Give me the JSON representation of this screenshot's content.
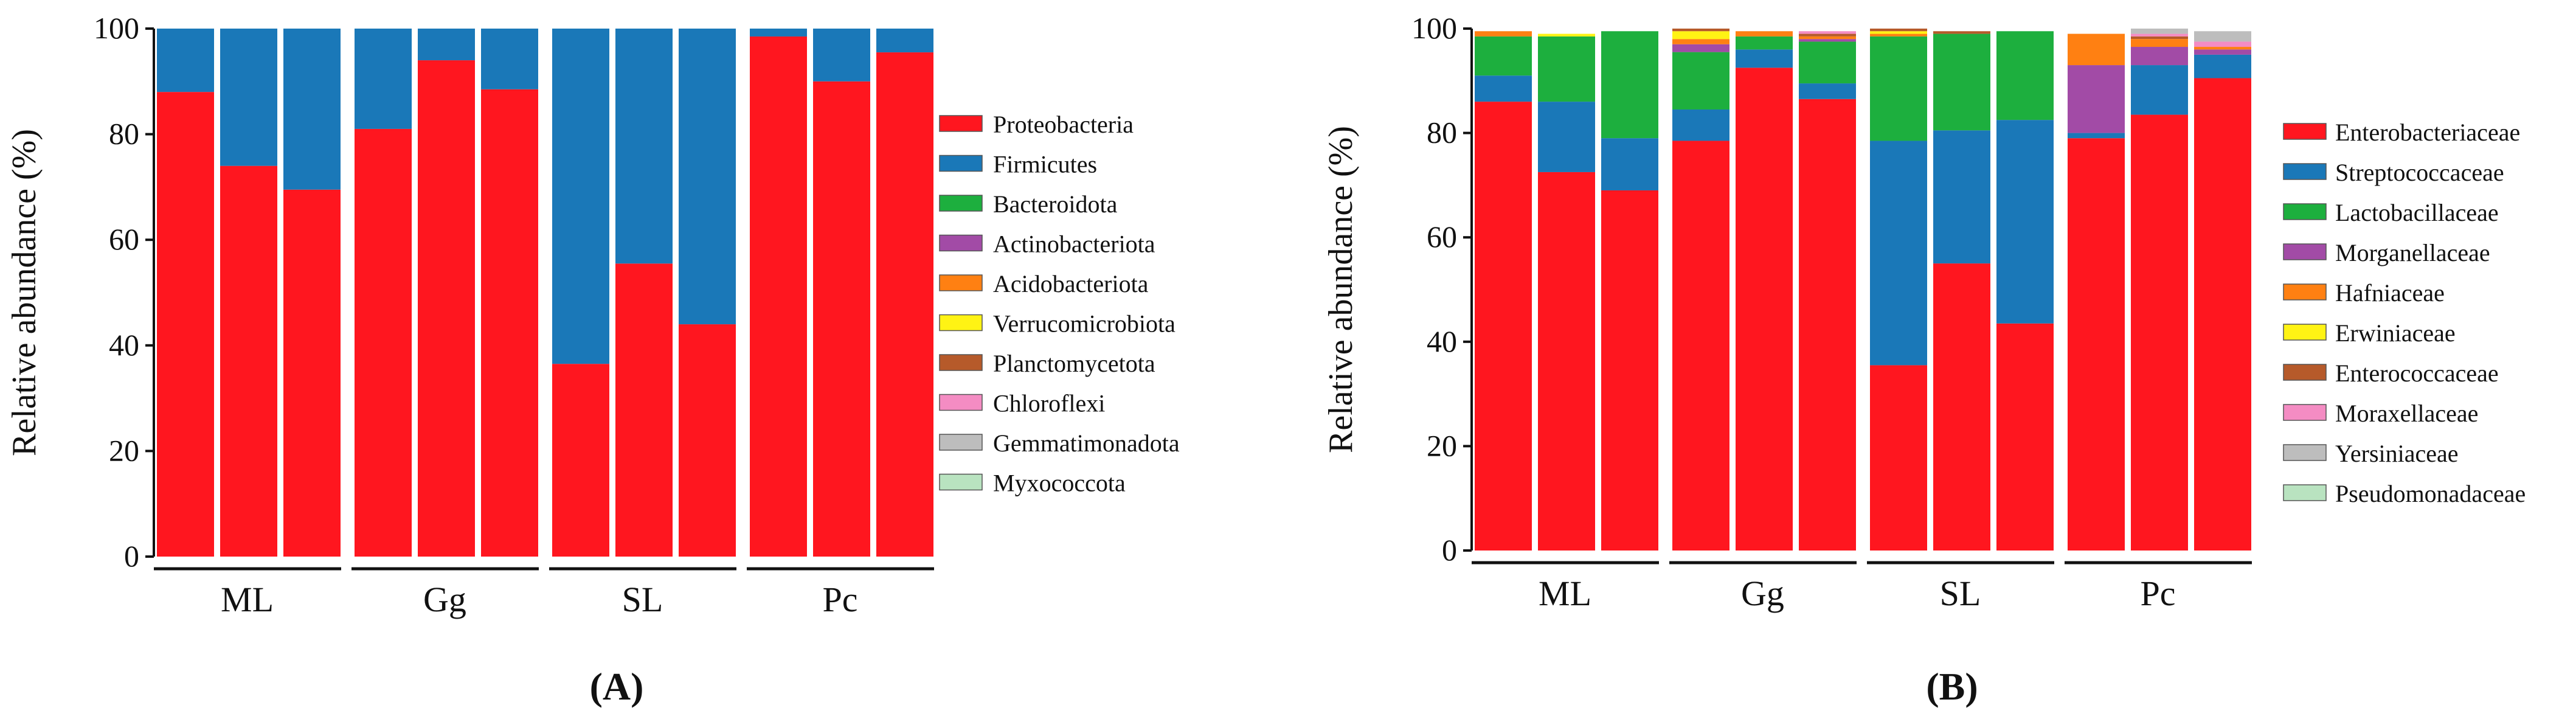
{
  "chart_data": [
    {
      "panel": "A",
      "panel_label": "(A)",
      "type": "bar",
      "stacked": true,
      "ylabel": "Relative abundance (%)",
      "ylim": [
        0,
        100
      ],
      "yticks": [
        0,
        20,
        40,
        60,
        80,
        100
      ],
      "groups": [
        {
          "label": "ML",
          "n": 3
        },
        {
          "label": "Gg",
          "n": 3
        },
        {
          "label": "SL",
          "n": 3
        },
        {
          "label": "Pc",
          "n": 3
        }
      ],
      "series": [
        {
          "name": "Proteobacteria",
          "color": "#FF161F",
          "values": [
            88,
            74,
            69.5,
            81,
            94,
            88.5,
            36.5,
            55.5,
            44,
            98.5,
            90,
            95.5
          ]
        },
        {
          "name": "Firmicutes",
          "color": "#1A78B8",
          "values": [
            12,
            26,
            30.5,
            19,
            6,
            11.5,
            63.5,
            44.5,
            56,
            1.5,
            10,
            4.5
          ]
        },
        {
          "name": "Bacteroidota",
          "color": "#1DAF3E",
          "values": [
            0,
            0,
            0,
            0,
            0,
            0,
            0,
            0,
            0,
            0,
            0,
            0
          ]
        },
        {
          "name": "Actinobacteriota",
          "color": "#A24BA6",
          "values": [
            0,
            0,
            0,
            0,
            0,
            0,
            0,
            0,
            0,
            0,
            0,
            0
          ]
        },
        {
          "name": "Acidobacteriota",
          "color": "#FF8012",
          "values": [
            0,
            0,
            0,
            0,
            0,
            0,
            0,
            0,
            0,
            0,
            0,
            0
          ]
        },
        {
          "name": "Verrucomicrobiota",
          "color": "#FFF314",
          "values": [
            0,
            0,
            0,
            0,
            0,
            0,
            0,
            0,
            0,
            0,
            0,
            0
          ]
        },
        {
          "name": "Planctomycetota",
          "color": "#B65A2A",
          "values": [
            0,
            0,
            0,
            0,
            0,
            0,
            0,
            0,
            0,
            0,
            0,
            0
          ]
        },
        {
          "name": "Chloroflexi",
          "color": "#F48CC3",
          "values": [
            0,
            0,
            0,
            0,
            0,
            0,
            0,
            0,
            0,
            0,
            0,
            0
          ]
        },
        {
          "name": "Gemmatimonadota",
          "color": "#BDBDBD",
          "values": [
            0,
            0,
            0,
            0,
            0,
            0,
            0,
            0,
            0,
            0,
            0,
            0
          ]
        },
        {
          "name": "Myxococcota",
          "color": "#B9E3C0",
          "values": [
            0,
            0,
            0,
            0,
            0,
            0,
            0,
            0,
            0,
            0,
            0,
            0
          ]
        }
      ]
    },
    {
      "panel": "B",
      "panel_label": "(B)",
      "type": "bar",
      "stacked": true,
      "ylabel": "Relative abundance (%)",
      "ylim": [
        0,
        100
      ],
      "yticks": [
        0,
        20,
        40,
        60,
        80,
        100
      ],
      "groups": [
        {
          "label": "ML",
          "n": 3
        },
        {
          "label": "Gg",
          "n": 3
        },
        {
          "label": "SL",
          "n": 3
        },
        {
          "label": "Pc",
          "n": 3
        }
      ],
      "series": [
        {
          "name": "Enterobacteriaceae",
          "color": "#FF161F",
          "values": [
            86,
            72.5,
            69,
            78.5,
            92.5,
            86.5,
            35.5,
            55,
            43.5,
            79,
            83.5,
            90.5
          ]
        },
        {
          "name": "Streptococcaceae",
          "color": "#1A78B8",
          "values": [
            5,
            13.5,
            10,
            6,
            3.5,
            3,
            43,
            25.5,
            39,
            1,
            9.5,
            4.5
          ]
        },
        {
          "name": "Lactobacillaceae",
          "color": "#1DAF3E",
          "values": [
            7.5,
            12.5,
            20.5,
            11,
            2.5,
            8,
            20,
            18.5,
            17,
            0,
            0,
            0
          ]
        },
        {
          "name": "Morganellaceae",
          "color": "#A24BA6",
          "values": [
            0,
            0,
            0,
            1.5,
            0,
            0.5,
            0,
            0,
            0,
            13,
            3.5,
            1
          ]
        },
        {
          "name": "Hafniaceae",
          "color": "#FF8012",
          "values": [
            1,
            0,
            0,
            1,
            1,
            0.5,
            0.5,
            0,
            0,
            6,
            1.5,
            0.5
          ]
        },
        {
          "name": "Erwiniaceae",
          "color": "#FFF314",
          "values": [
            0,
            0.5,
            0,
            1.5,
            0,
            0,
            0.5,
            0,
            0,
            0,
            0,
            0
          ]
        },
        {
          "name": "Enterococcaceae",
          "color": "#B65A2A",
          "values": [
            0,
            0,
            0,
            0.5,
            0,
            0.5,
            0.5,
            0.5,
            0,
            0,
            0.5,
            0
          ]
        },
        {
          "name": "Moraxellaceae",
          "color": "#F48CC3",
          "values": [
            0,
            0,
            0,
            0,
            0,
            0.5,
            0,
            0,
            0,
            0,
            0.5,
            1
          ]
        },
        {
          "name": "Yersiniaceae",
          "color": "#BDBDBD",
          "values": [
            0,
            0,
            0,
            0,
            0,
            0,
            0,
            0,
            0,
            0,
            1,
            2
          ]
        },
        {
          "name": "Pseudomonadaceae",
          "color": "#B9E3C0",
          "values": [
            0,
            0,
            0,
            0,
            0,
            0,
            0,
            0,
            0,
            0,
            0,
            0
          ]
        }
      ]
    }
  ]
}
